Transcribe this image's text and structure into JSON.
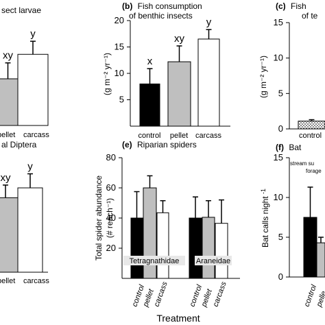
{
  "figure": {
    "x_axis_title": "Treatment",
    "colors": {
      "control": "#000000",
      "pellet": "#bfbfbf",
      "carcass": "#ffffff",
      "stroke": "#000000"
    }
  },
  "chart_data": [
    {
      "panel": "a",
      "type": "bar",
      "title": "sect larvae",
      "categories": [
        "pellet",
        "carcass"
      ],
      "visible_category_labels": [
        "pellet",
        "carcass"
      ],
      "values": [
        8.2,
        12.5
      ],
      "errors": [
        2.8,
        2.3
      ],
      "letters": [
        "xy",
        "y"
      ],
      "ylim": [
        0,
        20
      ]
    },
    {
      "panel": "b",
      "type": "bar",
      "title_letter": "(b)",
      "title": "Fish consumption",
      "title_line2": "of benthic insects",
      "ylabel": "(g m⁻² yr⁻¹)",
      "ylim": [
        0,
        20
      ],
      "yticks": [
        "5",
        "10",
        "15",
        "20"
      ],
      "categories": [
        "control",
        "pellet",
        "carcass"
      ],
      "values": [
        8.0,
        12.2,
        16.5
      ],
      "errors": [
        2.9,
        3.0,
        1.8
      ],
      "letters": [
        "x",
        "xy",
        "y"
      ]
    },
    {
      "panel": "c",
      "type": "bar",
      "title_letter": "(c)",
      "title": "Fish",
      "title_line2": "of te",
      "ylabel": "(g m⁻² yr⁻¹)",
      "ylim": [
        0,
        15
      ],
      "yticks": [
        "0",
        "5",
        "10",
        "15"
      ],
      "categories": [
        "control"
      ],
      "visible_category_labels": [
        "control"
      ],
      "values": [
        1.1
      ],
      "errors": [
        0.2
      ]
    },
    {
      "panel": "d",
      "type": "bar",
      "title": "al Diptera",
      "categories": [
        "pellet",
        "carcass"
      ],
      "visible_category_labels": [
        "pellet",
        "carcass"
      ],
      "values": [
        53,
        60
      ],
      "errors": [
        9,
        10
      ],
      "letters": [
        "xy",
        "y"
      ],
      "ylim": [
        0,
        80
      ]
    },
    {
      "panel": "e",
      "type": "bar",
      "title_letter": "(e)",
      "title": "Riparian spiders",
      "ylabel": "Total spider abundance",
      "ylabel_line2": "(# reach⁻¹)",
      "ylim": [
        0,
        80
      ],
      "yticks": [
        "20",
        "40",
        "60",
        "80"
      ],
      "categories": [
        "control",
        "pellet",
        "carcass"
      ],
      "groups": [
        "Tetragnathidae",
        "Araneidae"
      ],
      "series": [
        {
          "name": "Tetragnathidae",
          "values": [
            40,
            60,
            43.5
          ],
          "errors": [
            17.5,
            8,
            8
          ]
        },
        {
          "name": "Araneidae",
          "values": [
            40,
            40.5,
            36.5
          ],
          "errors": [
            14,
            11,
            15.5
          ]
        }
      ]
    },
    {
      "panel": "f",
      "type": "bar",
      "title_letter": "(f)",
      "title": "Bat",
      "ylabel": "Bat calls night",
      "ylabel_sup": "-1",
      "ylim": [
        0,
        15
      ],
      "yticks": [
        "0",
        "5",
        "10",
        "15"
      ],
      "annotation_line1": "stream su",
      "annotation_line2": "forage",
      "categories": [
        "control",
        "pellet"
      ],
      "visible_category_labels": [
        "control",
        "pelle"
      ],
      "values": [
        7.5,
        4.3
      ],
      "errors": [
        3.8,
        0.7
      ]
    }
  ]
}
